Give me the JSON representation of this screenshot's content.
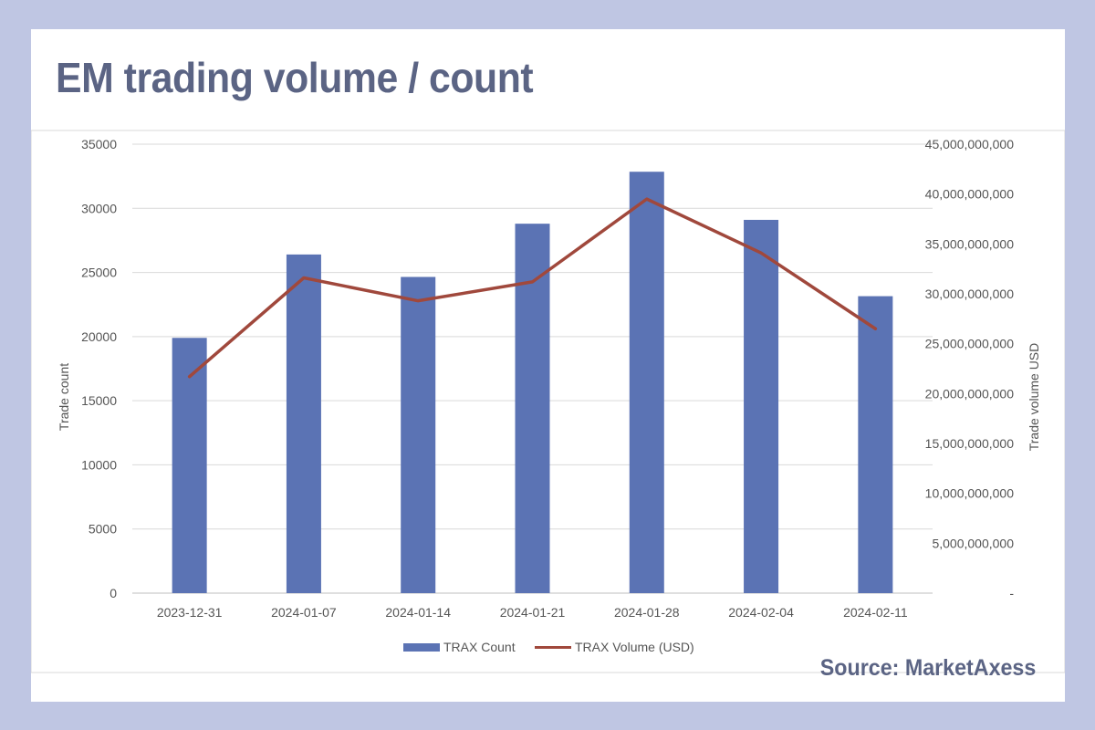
{
  "page": {
    "title": "EM trading volume / count",
    "source": "Source: MarketAxess"
  },
  "chart_data": {
    "type": "bar",
    "categories": [
      "2023-12-31",
      "2024-01-07",
      "2024-01-14",
      "2024-01-21",
      "2024-01-28",
      "2024-02-04",
      "2024-02-11"
    ],
    "series": [
      {
        "name": "TRAX Count",
        "type": "bar",
        "axis": "left",
        "color": "#5b73b4",
        "values": [
          19900,
          26400,
          24650,
          28800,
          32850,
          29100,
          23150
        ]
      },
      {
        "name": "TRAX Volume (USD)",
        "type": "line",
        "axis": "right",
        "color": "#a0483c",
        "values": [
          21700000000,
          31600000000,
          29300000000,
          31200000000,
          39500000000,
          34100000000,
          26500000000
        ]
      }
    ],
    "ylabel": "Trade count",
    "y2label": "Trade volume USD",
    "ylim": [
      0,
      35000
    ],
    "y2lim": [
      0,
      45000000000
    ],
    "yticks": [
      "0",
      "5000",
      "10000",
      "15000",
      "20000",
      "25000",
      "30000",
      "35000"
    ],
    "y2ticks": [
      "-",
      "5,000,000,000",
      "10,000,000,000",
      "15,000,000,000",
      "20,000,000,000",
      "25,000,000,000",
      "30,000,000,000",
      "35,000,000,000",
      "40,000,000,000",
      "45,000,000,000"
    ],
    "grid": true,
    "legend": "bottom"
  }
}
